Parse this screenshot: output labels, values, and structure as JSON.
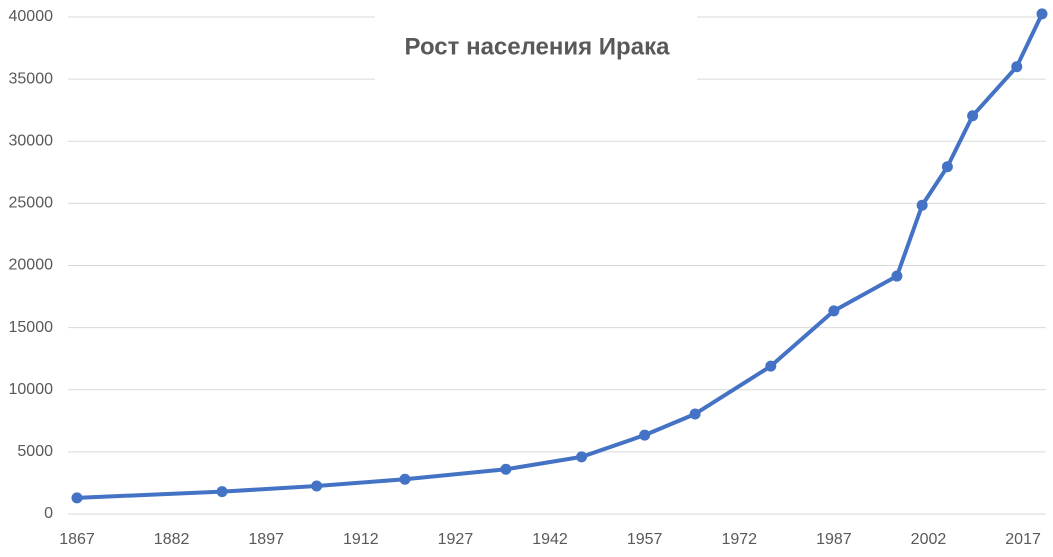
{
  "chart_data": {
    "type": "line",
    "title": "Рост населения Ирака",
    "x": [
      1867,
      1890,
      1905,
      1919,
      1935,
      1947,
      1957,
      1965,
      1977,
      1987,
      1997,
      2001,
      2005,
      2009,
      2016,
      2020
    ],
    "values": [
      1300,
      1800,
      2250,
      2800,
      3600,
      4600,
      6350,
      8050,
      11900,
      16350,
      19150,
      24850,
      27950,
      32050,
      36000,
      40250
    ],
    "color": "#4472c4",
    "xlim": [
      1867,
      2020
    ],
    "xticks": [
      1867,
      1882,
      1897,
      1912,
      1927,
      1942,
      1957,
      1972,
      1987,
      2002,
      2017
    ],
    "ylim": [
      0,
      40000
    ],
    "yticks": [
      0,
      5000,
      10000,
      15000,
      20000,
      25000,
      30000,
      35000,
      40000
    ],
    "grid": true
  }
}
